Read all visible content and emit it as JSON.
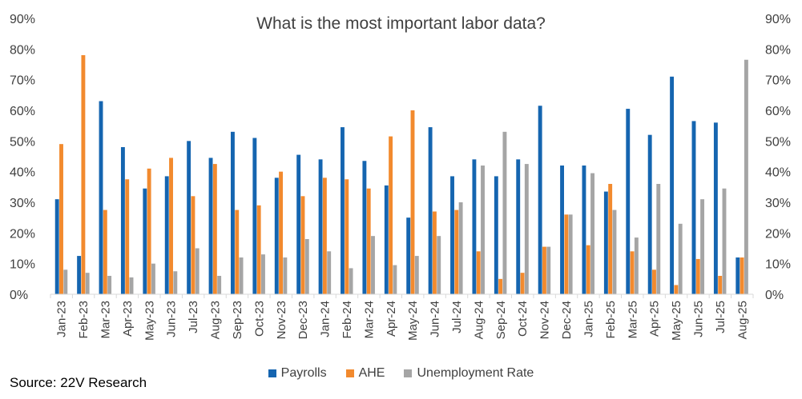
{
  "source": "Source: 22V Research",
  "colors": {
    "payrolls": "#1565b0",
    "ahe": "#f28a2e",
    "unemployment": "#a5a5a5",
    "axis": "#d9d9d9",
    "text": "#404040"
  },
  "chart_data": {
    "type": "bar",
    "title": "What is the most important labor data?",
    "xlabel": "",
    "ylabel": "",
    "ylim": [
      0,
      0.9
    ],
    "yticks": [
      "0%",
      "10%",
      "20%",
      "30%",
      "40%",
      "50%",
      "60%",
      "70%",
      "80%",
      "90%"
    ],
    "grid": false,
    "legend_position": "bottom",
    "categories": [
      "Jan-23",
      "Feb-23",
      "Mar-23",
      "Apr-23",
      "May-23",
      "Jun-23",
      "Jul-23",
      "Aug-23",
      "Sep-23",
      "Oct-23",
      "Nov-23",
      "Dec-23",
      "Jan-24",
      "Feb-24",
      "Mar-24",
      "Apr-24",
      "May-24",
      "Jun-24",
      "Jul-24",
      "Aug-24",
      "Sep-24",
      "Oct-24",
      "Nov-24",
      "Dec-24",
      "Jan-25",
      "Feb-25",
      "Mar-25",
      "Apr-25",
      "May-25",
      "Jun-25",
      "Jul-25",
      "Aug-25"
    ],
    "series": [
      {
        "name": "Payrolls",
        "values": [
          0.31,
          0.125,
          0.63,
          0.48,
          0.345,
          0.385,
          0.5,
          0.445,
          0.53,
          0.51,
          0.38,
          0.455,
          0.44,
          0.545,
          0.435,
          0.355,
          0.25,
          0.545,
          0.385,
          0.44,
          0.385,
          0.44,
          0.615,
          0.42,
          0.42,
          0.335,
          0.605,
          0.52,
          0.71,
          0.565,
          0.56,
          0.12
        ]
      },
      {
        "name": "AHE",
        "values": [
          0.49,
          0.78,
          0.275,
          0.375,
          0.41,
          0.445,
          0.32,
          0.425,
          0.275,
          0.29,
          0.4,
          0.32,
          0.38,
          0.375,
          0.345,
          0.515,
          0.6,
          0.27,
          0.275,
          0.14,
          0.05,
          0.07,
          0.155,
          0.26,
          0.16,
          0.36,
          0.14,
          0.08,
          0.03,
          0.115,
          0.06,
          0.12
        ]
      },
      {
        "name": "Unemployment Rate",
        "values": [
          0.08,
          0.07,
          0.06,
          0.055,
          0.1,
          0.075,
          0.15,
          0.06,
          0.12,
          0.13,
          0.12,
          0.18,
          0.14,
          0.085,
          0.19,
          0.095,
          0.125,
          0.19,
          0.3,
          0.42,
          0.53,
          0.425,
          0.155,
          0.26,
          0.395,
          0.275,
          0.185,
          0.36,
          0.23,
          0.31,
          0.345,
          0.765
        ]
      }
    ]
  }
}
